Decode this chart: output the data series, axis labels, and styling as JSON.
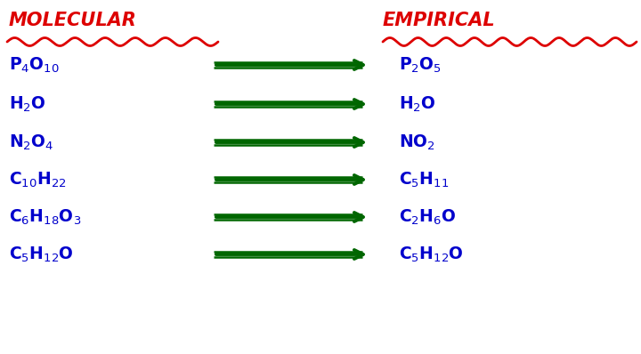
{
  "bg_color": "#ffffff",
  "title_left": "MOLECULAR",
  "title_right": "EMPIRICAL",
  "title_color": "#dd0000",
  "text_color": "#0000cc",
  "arrow_color": "#006600",
  "molecular": [
    "P$_4$O$_{10}$",
    "H$_2$O",
    "N$_2$O$_4$",
    "C$_{10}$H$_{22}$",
    "C$_6$H$_{18}$O$_3$",
    "C$_5$H$_{12}$O"
  ],
  "empirical": [
    "P$_2$O$_5$",
    "H$_2$O",
    "NO$_2$",
    "C$_5$H$_{11}$",
    "C$_2$H$_6$O",
    "C$_5$H$_{12}$O"
  ],
  "figsize": [
    7.2,
    3.98
  ],
  "dpi": 100
}
